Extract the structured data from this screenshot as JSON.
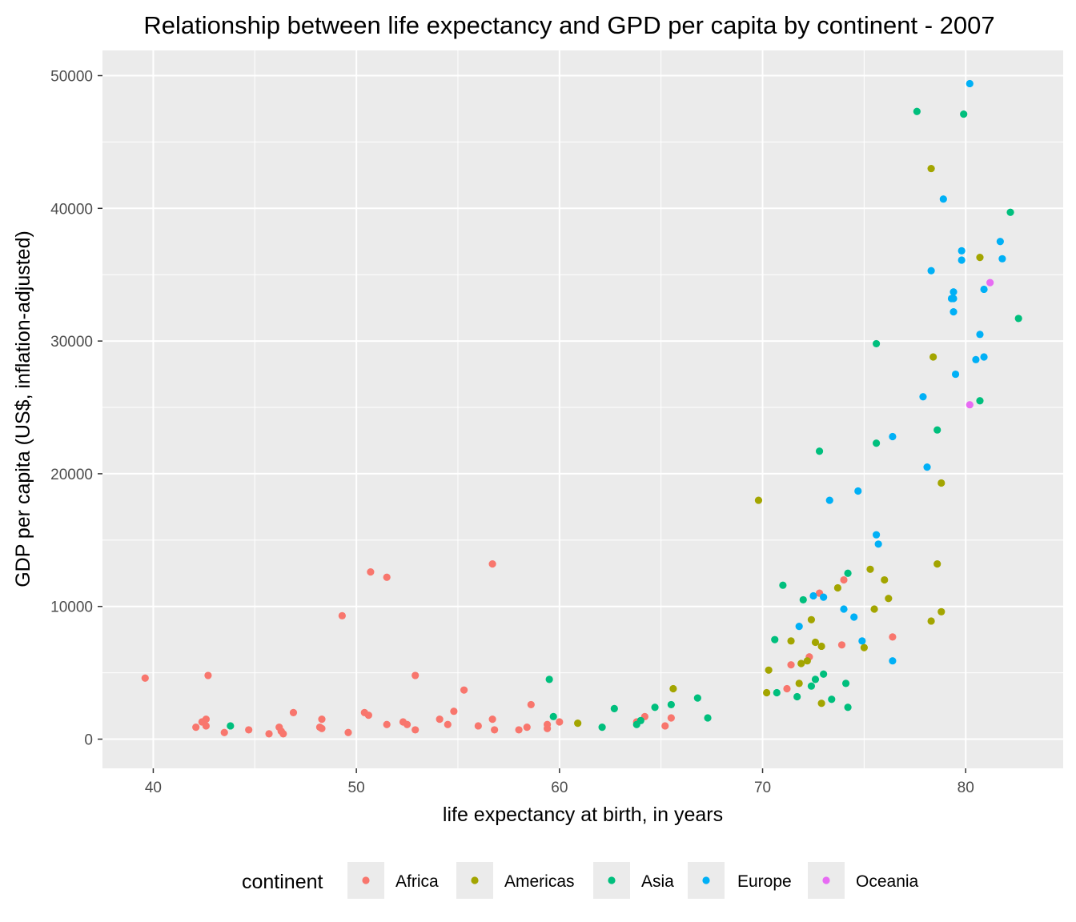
{
  "chart_data": {
    "type": "scatter",
    "title": "Relationship between life expectancy and GPD per capita by continent - 2007",
    "xlabel": "life expectancy at birth, in years",
    "ylabel": "GDP per capita (US$, inflation-adjusted)",
    "xlim": [
      37.5,
      84.8
    ],
    "ylim": [
      -2200,
      51900
    ],
    "x_ticks": [
      40,
      50,
      60,
      70,
      80
    ],
    "x_tick_labels": [
      "40",
      "50",
      "60",
      "70",
      "80"
    ],
    "y_ticks": [
      0,
      10000,
      20000,
      30000,
      40000,
      50000
    ],
    "y_tick_labels": [
      "0",
      "10000",
      "20000",
      "30000",
      "40000",
      "50000"
    ],
    "grid": true,
    "background": "#ebebeb",
    "legend": {
      "title": "continent",
      "position": "bottom"
    },
    "series": [
      {
        "name": "Africa",
        "color": "#f8766d",
        "points": [
          [
            39.6,
            4600
          ],
          [
            42.1,
            900
          ],
          [
            42.4,
            1300
          ],
          [
            42.6,
            1000
          ],
          [
            42.6,
            1500
          ],
          [
            42.7,
            4800
          ],
          [
            43.5,
            500
          ],
          [
            44.7,
            700
          ],
          [
            45.7,
            400
          ],
          [
            46.2,
            900
          ],
          [
            46.3,
            600
          ],
          [
            46.4,
            400
          ],
          [
            46.9,
            2000
          ],
          [
            48.2,
            900
          ],
          [
            48.3,
            1500
          ],
          [
            48.3,
            800
          ],
          [
            49.3,
            9300
          ],
          [
            49.6,
            500
          ],
          [
            50.4,
            2000
          ],
          [
            50.6,
            1800
          ],
          [
            50.7,
            12600
          ],
          [
            51.5,
            1100
          ],
          [
            51.5,
            12200
          ],
          [
            52.3,
            1300
          ],
          [
            52.5,
            1100
          ],
          [
            52.9,
            4800
          ],
          [
            52.9,
            700
          ],
          [
            54.1,
            1500
          ],
          [
            54.5,
            1100
          ],
          [
            54.8,
            2100
          ],
          [
            55.3,
            3700
          ],
          [
            56.0,
            1000
          ],
          [
            56.7,
            1500
          ],
          [
            56.7,
            13200
          ],
          [
            56.8,
            700
          ],
          [
            58.0,
            700
          ],
          [
            58.4,
            900
          ],
          [
            58.6,
            2600
          ],
          [
            59.4,
            1100
          ],
          [
            59.4,
            800
          ],
          [
            60.0,
            1300
          ],
          [
            63.8,
            1300
          ],
          [
            64.2,
            1700
          ],
          [
            65.2,
            1000
          ],
          [
            65.5,
            1600
          ],
          [
            71.2,
            3800
          ],
          [
            71.4,
            5600
          ],
          [
            72.3,
            6200
          ],
          [
            72.8,
            11000
          ],
          [
            73.9,
            7100
          ],
          [
            74.0,
            12000
          ],
          [
            76.4,
            7700
          ]
        ]
      },
      {
        "name": "Americas",
        "color": "#a3a500",
        "points": [
          [
            60.9,
            1200
          ],
          [
            65.6,
            3800
          ],
          [
            69.8,
            18000
          ],
          [
            70.2,
            3500
          ],
          [
            70.3,
            5200
          ],
          [
            71.4,
            7400
          ],
          [
            71.8,
            4200
          ],
          [
            71.9,
            5700
          ],
          [
            72.2,
            5900
          ],
          [
            72.4,
            9000
          ],
          [
            72.6,
            7300
          ],
          [
            72.9,
            7000
          ],
          [
            72.9,
            2700
          ],
          [
            73.7,
            11400
          ],
          [
            75.0,
            6900
          ],
          [
            75.3,
            12800
          ],
          [
            75.5,
            9800
          ],
          [
            76.0,
            12000
          ],
          [
            76.2,
            10600
          ],
          [
            78.3,
            8900
          ],
          [
            78.3,
            43000
          ],
          [
            78.4,
            28800
          ],
          [
            78.6,
            13200
          ],
          [
            78.8,
            19300
          ],
          [
            78.8,
            9600
          ],
          [
            80.7,
            36300
          ]
        ]
      },
      {
        "name": "Asia",
        "color": "#00bf7d",
        "points": [
          [
            43.8,
            1000
          ],
          [
            59.5,
            4500
          ],
          [
            59.7,
            1700
          ],
          [
            62.1,
            900
          ],
          [
            62.7,
            2300
          ],
          [
            63.8,
            1100
          ],
          [
            64.0,
            1400
          ],
          [
            64.7,
            2400
          ],
          [
            65.5,
            2600
          ],
          [
            66.8,
            3100
          ],
          [
            67.3,
            1600
          ],
          [
            70.6,
            7500
          ],
          [
            70.7,
            3500
          ],
          [
            71.0,
            11600
          ],
          [
            71.7,
            3200
          ],
          [
            72.0,
            10500
          ],
          [
            72.4,
            4000
          ],
          [
            72.6,
            4500
          ],
          [
            72.8,
            21700
          ],
          [
            73.0,
            4900
          ],
          [
            73.4,
            3000
          ],
          [
            74.1,
            4200
          ],
          [
            74.2,
            2400
          ],
          [
            74.2,
            12500
          ],
          [
            75.6,
            22300
          ],
          [
            75.6,
            29800
          ],
          [
            77.6,
            47300
          ],
          [
            78.6,
            23300
          ],
          [
            79.9,
            47100
          ],
          [
            80.7,
            25500
          ],
          [
            82.2,
            39700
          ],
          [
            82.6,
            31700
          ]
        ]
      },
      {
        "name": "Europe",
        "color": "#00b0f6",
        "points": [
          [
            71.8,
            8500
          ],
          [
            72.5,
            10800
          ],
          [
            73.0,
            10700
          ],
          [
            73.3,
            18000
          ],
          [
            74.0,
            9800
          ],
          [
            74.5,
            9200
          ],
          [
            74.7,
            18700
          ],
          [
            74.9,
            7400
          ],
          [
            75.6,
            15400
          ],
          [
            75.7,
            14700
          ],
          [
            76.4,
            5900
          ],
          [
            76.4,
            22800
          ],
          [
            77.9,
            25800
          ],
          [
            78.1,
            20500
          ],
          [
            78.3,
            35300
          ],
          [
            78.9,
            40700
          ],
          [
            79.3,
            33200
          ],
          [
            79.4,
            33700
          ],
          [
            79.4,
            32200
          ],
          [
            79.4,
            33200
          ],
          [
            79.5,
            27500
          ],
          [
            79.8,
            36800
          ],
          [
            79.8,
            36100
          ],
          [
            80.2,
            49400
          ],
          [
            80.5,
            28600
          ],
          [
            80.7,
            30500
          ],
          [
            80.9,
            28800
          ],
          [
            80.9,
            33900
          ],
          [
            81.7,
            37500
          ],
          [
            81.8,
            36200
          ]
        ]
      },
      {
        "name": "Oceania",
        "color": "#e76bf3",
        "points": [
          [
            80.2,
            25200
          ],
          [
            81.2,
            34400
          ]
        ]
      }
    ]
  }
}
